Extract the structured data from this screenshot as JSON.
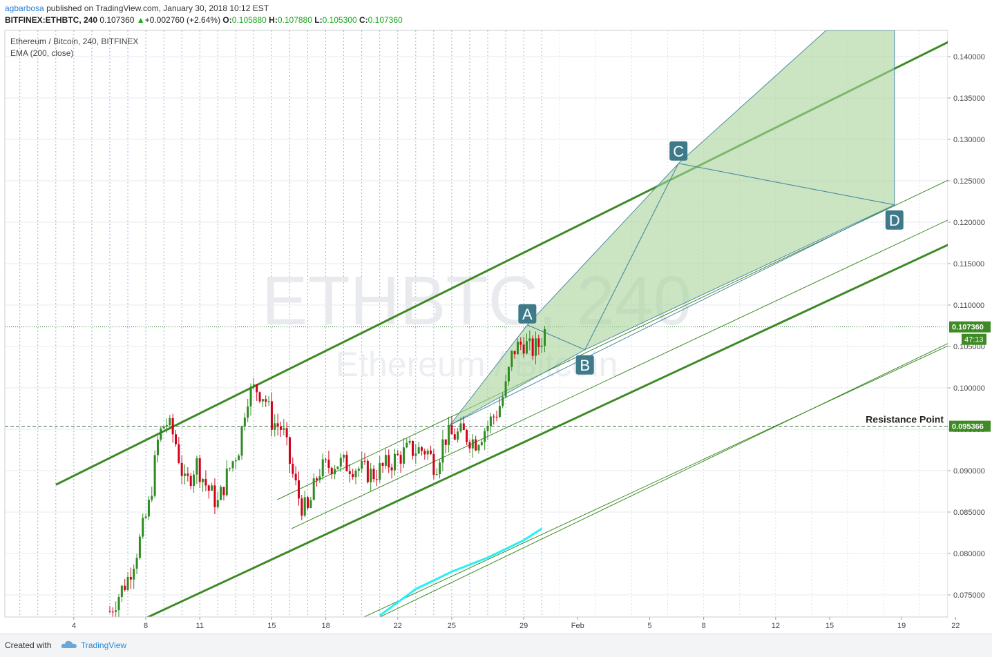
{
  "header": {
    "author": "agbarbosa",
    "published_text": "published on TradingView.com, January 30, 2018 10:12 EST",
    "symbol": "BITFINEX:ETHBTC, 240",
    "last": "0.107360",
    "change": "+0.002760 (+2.64%)",
    "open_label": "O:",
    "open": "0.105880",
    "high_label": "H:",
    "high": "0.107880",
    "low_label": "L:",
    "low": "0.105300",
    "close_label": "C:",
    "close": "0.107360"
  },
  "legend": {
    "series_title": "Ethereum / Bitcoin, 240, BITFINEX",
    "indicator": "EMA (200, close)"
  },
  "watermark": {
    "line1": "ETHBTC, 240",
    "line2": "Ethereum / Bitcoin"
  },
  "footer": {
    "created_with": "Created with",
    "brand": "TradingView"
  },
  "colors": {
    "up": "#2e8b22",
    "down": "#d0021b",
    "channel": "#3e8a25",
    "pattern_fill": "#a8d49b",
    "pattern_line": "#4d8aa0",
    "ema": "#27f0f4",
    "label_bg": "#3f7a8a",
    "price_tag": "#3e8a25"
  },
  "chart_data": {
    "type": "candlestick",
    "x_tick_labels": [
      "4",
      "8",
      "11",
      "15",
      "18",
      "22",
      "25",
      "29",
      "Feb",
      "5",
      "8",
      "12",
      "15",
      "19",
      "22"
    ],
    "y_tick_labels": [
      "0.140000",
      "0.135000",
      "0.130000",
      "0.125000",
      "0.120000",
      "0.115000",
      "0.110000",
      "0.105000",
      "0.100000",
      "0.095000",
      "0.090000",
      "0.085000",
      "0.080000",
      "0.075000"
    ],
    "ylim": [
      0.0718,
      0.1424
    ],
    "last_price": {
      "label": "0.107360",
      "value": 0.10736,
      "countdown": "47:13"
    },
    "resistance": {
      "label": "Resistance Point",
      "value": 0.095366,
      "price_label": "0.095366"
    },
    "harmonic_pattern": [
      {
        "label": "A",
        "value": 0.1076
      },
      {
        "label": "B",
        "value": 0.1046
      },
      {
        "label": "C",
        "value": 0.1271
      },
      {
        "label": "D",
        "value": 0.1221
      }
    ],
    "ema_200": [
      {
        "date": "Jan 21",
        "value": 0.0725
      },
      {
        "date": "Jan 23",
        "value": 0.0757
      },
      {
        "date": "Jan 25",
        "value": 0.0778
      },
      {
        "date": "Jan 27",
        "value": 0.0795
      },
      {
        "date": "Jan 29",
        "value": 0.0816
      },
      {
        "date": "Jan 30",
        "value": 0.083
      }
    ],
    "channel_high": [
      {
        "date": "Jan 3",
        "value": 0.0883
      },
      {
        "date": "Feb 22",
        "value": 0.1422
      }
    ],
    "channel_low": [
      {
        "date": "Jan 8",
        "value": 0.0722
      },
      {
        "date": "Feb 22",
        "value": 0.1177
      }
    ]
  }
}
